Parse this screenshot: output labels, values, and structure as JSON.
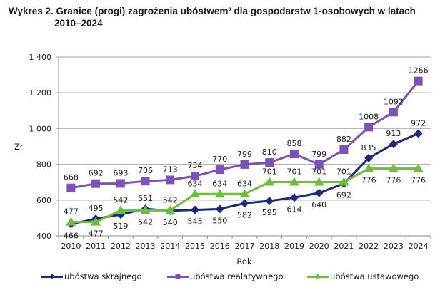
{
  "title": {
    "line1": "Wykres 2. Granice (progi) zagrożenia ubóstwem",
    "sup": "a",
    "line1_rest": " dla gospodarstw 1-osobowych w latach",
    "line2": "2010–2024"
  },
  "colors": {
    "skrajnego": "#1b2a7a",
    "relatywnego": "#7b52b8",
    "ustawowego": "#6bbf3a",
    "grid": "#b5b5b5",
    "axis": "#8a8a8a"
  },
  "chart_data": {
    "type": "line",
    "xlabel": "Rok",
    "ylabel": "Zł",
    "ylim": [
      400,
      1400
    ],
    "yticks": [
      400,
      600,
      800,
      1000,
      1200,
      1400
    ],
    "ytick_labels": [
      "400",
      "600",
      "800",
      "1 000",
      "1 200",
      "1 400"
    ],
    "grid": true,
    "legend_position": "bottom",
    "categories": [
      "2010",
      "2011",
      "2012",
      "2013",
      "2014",
      "2015",
      "2016",
      "2017",
      "2018",
      "2019",
      "2020",
      "2021",
      "2022",
      "2023",
      "2024"
    ],
    "series": [
      {
        "name": "ubóstwa skrajnego",
        "key": "skrajnego",
        "marker": "diamond",
        "label_pos": [
          "below",
          "above",
          "below",
          "above",
          "below",
          "below",
          "below",
          "below",
          "below",
          "below",
          "below",
          "below",
          "above",
          "above",
          "above"
        ],
        "values": [
          466,
          495,
          519,
          551,
          540,
          545,
          550,
          582,
          595,
          614,
          640,
          692,
          835,
          913,
          972
        ]
      },
      {
        "name": "ubóstwa realatywnego",
        "key": "relatywnego",
        "marker": "square",
        "label_pos": [
          "above",
          "above",
          "above",
          "above",
          "above",
          "above",
          "above",
          "above",
          "above",
          "above",
          "above",
          "above",
          "above",
          "above",
          "above"
        ],
        "values": [
          668,
          692,
          693,
          706,
          713,
          734,
          770,
          799,
          810,
          858,
          799,
          882,
          1008,
          1092,
          1266
        ]
      },
      {
        "name": "ubóstwa ustawowego",
        "key": "ustawowego",
        "marker": "triangle",
        "label_pos": [
          "above",
          "below",
          "above",
          "below",
          "above",
          "above",
          "above",
          "above",
          "above",
          "above",
          "above",
          "above",
          "below",
          "below",
          "below"
        ],
        "values": [
          477,
          477,
          542,
          542,
          542,
          634,
          634,
          634,
          701,
          701,
          701,
          701,
          776,
          776,
          776
        ]
      }
    ]
  }
}
